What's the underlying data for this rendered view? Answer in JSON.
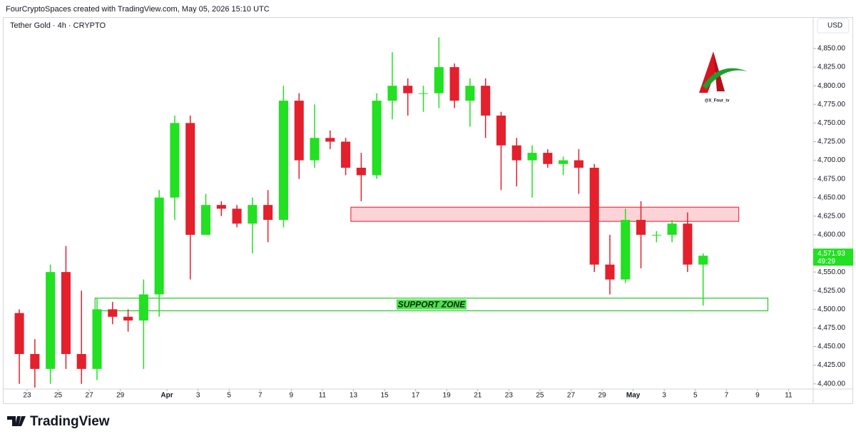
{
  "header": {
    "credit": "FourCryptoSpaces created with TradingView.com, May 05, 2026 15:10 UTC"
  },
  "footer": {
    "brand": "TradingView"
  },
  "watermark": "@X_Four_iv",
  "chart_data": {
    "type": "candlestick",
    "title": "Tether Gold · 4h · CRYPTO",
    "currency": "USD",
    "up_color": "#22e022",
    "down_color": "#e3202c",
    "grid": false,
    "x": [
      "2026-03-22T12:00",
      "2026-03-23T12:00",
      "2026-03-24T12:00",
      "2026-03-25T12:00",
      "2026-03-26T12:00",
      "2026-03-27T12:00",
      "2026-03-28T12:00",
      "2026-03-29T12:00",
      "2026-03-30T12:00",
      "2026-03-31T12:00",
      "2026-04-01T12:00",
      "2026-04-02T12:00",
      "2026-04-03T12:00",
      "2026-04-04T12:00",
      "2026-04-05T12:00",
      "2026-04-06T12:00",
      "2026-04-07T12:00",
      "2026-04-08T12:00",
      "2026-04-09T12:00",
      "2026-04-10T12:00",
      "2026-04-11T12:00",
      "2026-04-12T12:00",
      "2026-04-13T12:00",
      "2026-04-14T12:00",
      "2026-04-15T12:00",
      "2026-04-16T12:00",
      "2026-04-17T12:00",
      "2026-04-18T12:00",
      "2026-04-19T12:00",
      "2026-04-20T12:00",
      "2026-04-21T12:00",
      "2026-04-22T12:00",
      "2026-04-23T12:00",
      "2026-04-24T12:00",
      "2026-04-25T12:00",
      "2026-04-26T12:00",
      "2026-04-27T12:00",
      "2026-04-28T12:00",
      "2026-04-29T12:00",
      "2026-04-30T12:00",
      "2026-05-01T12:00",
      "2026-05-02T12:00",
      "2026-05-03T12:00",
      "2026-05-04T12:00",
      "2026-05-05T12:00"
    ],
    "open": [
      4495,
      4440,
      4420,
      4550,
      4440,
      4420,
      4500,
      4490,
      4485,
      4520,
      4650,
      4750,
      4600,
      4640,
      4635,
      4615,
      4640,
      4620,
      4780,
      4700,
      4730,
      4725,
      4690,
      4680,
      4780,
      4800,
      4790,
      4790,
      4825,
      4780,
      4800,
      4760,
      4720,
      4700,
      4710,
      4695,
      4700,
      4690,
      4560,
      4540,
      4620,
      4600,
      4600,
      4615,
      4560
    ],
    "high": [
      4500,
      4460,
      4560,
      4585,
      4525,
      4515,
      4510,
      4500,
      4540,
      4660,
      4760,
      4760,
      4655,
      4645,
      4640,
      4650,
      4660,
      4800,
      4790,
      4775,
      4740,
      4730,
      4710,
      4790,
      4845,
      4810,
      4800,
      4865,
      4830,
      4810,
      4810,
      4765,
      4730,
      4720,
      4715,
      4705,
      4715,
      4695,
      4600,
      4635,
      4645,
      4605,
      4620,
      4630,
      4575
    ],
    "low": [
      4400,
      4395,
      4400,
      4420,
      4400,
      4405,
      4480,
      4470,
      4420,
      4490,
      4620,
      4540,
      4600,
      4625,
      4610,
      4575,
      4590,
      4610,
      4675,
      4690,
      4715,
      4680,
      4645,
      4675,
      4755,
      4760,
      4765,
      4770,
      4770,
      4745,
      4730,
      4660,
      4665,
      4650,
      4690,
      4680,
      4655,
      4550,
      4520,
      4535,
      4555,
      4590,
      4590,
      4550,
      4505
    ],
    "close": [
      4440,
      4420,
      4550,
      4440,
      4420,
      4500,
      4490,
      4485,
      4520,
      4650,
      4750,
      4600,
      4640,
      4635,
      4615,
      4640,
      4620,
      4780,
      4700,
      4730,
      4725,
      4690,
      4680,
      4780,
      4800,
      4790,
      4790,
      4825,
      4780,
      4800,
      4760,
      4720,
      4700,
      4710,
      4695,
      4700,
      4690,
      4560,
      4540,
      4620,
      4600,
      4600,
      4615,
      4560,
      4571.93
    ],
    "xlim": [
      "2026-03-21T15:00",
      "2026-05-12T14:00"
    ],
    "xticks": [
      {
        "value": "2026-03-23",
        "label": "23"
      },
      {
        "value": "2026-03-25",
        "label": "25"
      },
      {
        "value": "2026-03-27",
        "label": "27"
      },
      {
        "value": "2026-03-29",
        "label": "29"
      },
      {
        "value": "2026-04-01",
        "label": "Apr"
      },
      {
        "value": "2026-04-03",
        "label": "3"
      },
      {
        "value": "2026-04-05",
        "label": "5"
      },
      {
        "value": "2026-04-07",
        "label": "7"
      },
      {
        "value": "2026-04-09",
        "label": "9"
      },
      {
        "value": "2026-04-11",
        "label": "11"
      },
      {
        "value": "2026-04-13",
        "label": "13"
      },
      {
        "value": "2026-04-15",
        "label": "15"
      },
      {
        "value": "2026-04-17",
        "label": "17"
      },
      {
        "value": "2026-04-19",
        "label": "19"
      },
      {
        "value": "2026-04-21",
        "label": "21"
      },
      {
        "value": "2026-04-23",
        "label": "23"
      },
      {
        "value": "2026-04-25",
        "label": "25"
      },
      {
        "value": "2026-04-27",
        "label": "27"
      },
      {
        "value": "2026-04-29",
        "label": "29"
      },
      {
        "value": "2026-05-01",
        "label": "May"
      },
      {
        "value": "2026-05-03",
        "label": "3"
      },
      {
        "value": "2026-05-05",
        "label": "5"
      },
      {
        "value": "2026-05-07",
        "label": "7"
      },
      {
        "value": "2026-05-09",
        "label": "9"
      },
      {
        "value": "2026-05-11",
        "label": "11"
      }
    ],
    "ylim": [
      4393,
      4872
    ],
    "yticks": [
      {
        "value": 4400,
        "label": "4,400.00"
      },
      {
        "value": 4425,
        "label": "4,425.00"
      },
      {
        "value": 4450,
        "label": "4,450.00"
      },
      {
        "value": 4475,
        "label": "4,475.00"
      },
      {
        "value": 4500,
        "label": "4,500.00"
      },
      {
        "value": 4525,
        "label": "4,525.00"
      },
      {
        "value": 4550,
        "label": "4,550.00"
      },
      {
        "value": 4575,
        "label": "4,575.00"
      },
      {
        "value": 4600,
        "label": "4,600.00"
      },
      {
        "value": 4625,
        "label": "4,625.00"
      },
      {
        "value": 4650,
        "label": "4,650.00"
      },
      {
        "value": 4675,
        "label": "4,675.00"
      },
      {
        "value": 4700,
        "label": "4,700.00"
      },
      {
        "value": 4725,
        "label": "4,725.00"
      },
      {
        "value": 4750,
        "label": "4,750.00"
      },
      {
        "value": 4775,
        "label": "4,775.00"
      },
      {
        "value": 4800,
        "label": "4,800.00"
      },
      {
        "value": 4825,
        "label": "4,825.00"
      },
      {
        "value": 4850,
        "label": "4,850.00"
      }
    ],
    "zones": [
      {
        "xlim": [
          "2026-04-12T20:00",
          "2026-05-07T19:00"
        ],
        "ylim": [
          4618,
          4637
        ],
        "color": "#f23645"
      },
      {
        "xlim": [
          "2026-03-27T09:00",
          "2026-05-09T16:00"
        ],
        "ylim": [
          4498,
          4515
        ],
        "color": "#22cc22",
        "label": "SUPPORT ZONE"
      }
    ],
    "last_price": {
      "value": 4571.93,
      "label": "4,571.93"
    },
    "countdown": "49:29"
  }
}
